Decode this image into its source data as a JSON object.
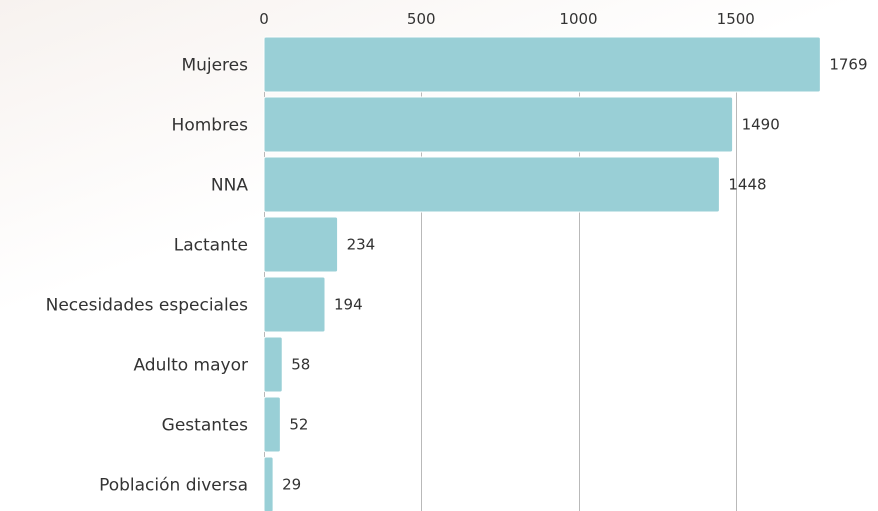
{
  "chart_data": {
    "type": "bar",
    "orientation": "horizontal",
    "categories": [
      "Mujeres",
      "Hombres",
      "NNA",
      "Lactante",
      "Necesidades especiales",
      "Adulto mayor",
      "Gestantes",
      "Población diversa"
    ],
    "values": [
      1769,
      1490,
      1448,
      234,
      194,
      58,
      52,
      29
    ],
    "value_labels": [
      "1769",
      "1490",
      "1448",
      "234",
      "194",
      "58",
      "52",
      "29"
    ],
    "x_ticks": [
      0,
      500,
      1000,
      1500
    ],
    "x_tick_labels": [
      "0",
      "500",
      "1000",
      "1500"
    ],
    "xlim": [
      0,
      1769
    ],
    "grid": true,
    "axis_position": "top",
    "title": "",
    "xlabel": "",
    "ylabel": "",
    "bar_color": "#99cfd6",
    "grid_color": "#b9b9b9",
    "text_color": "#333333"
  }
}
